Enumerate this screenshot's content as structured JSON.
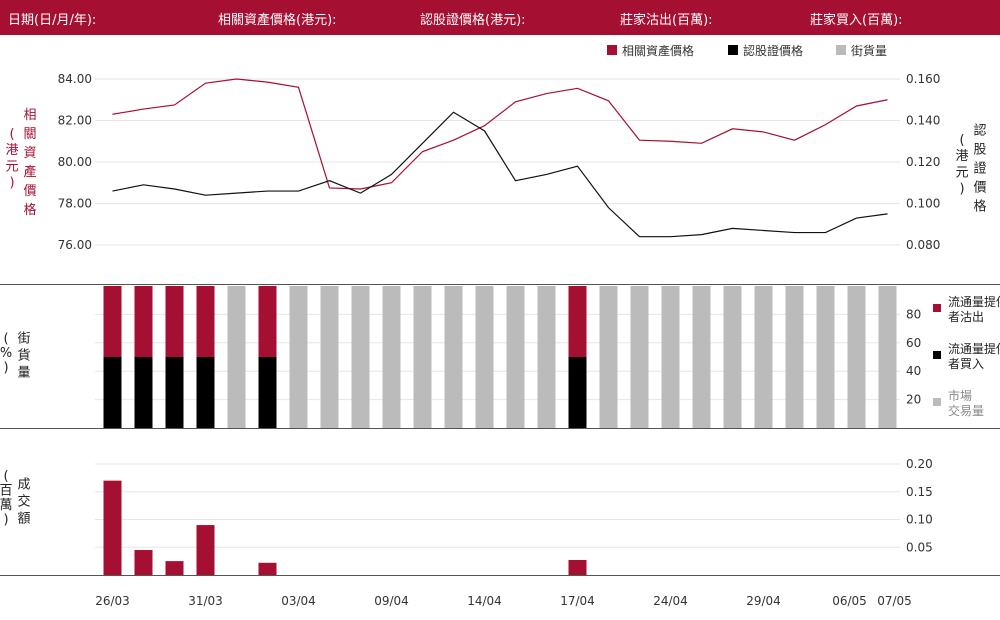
{
  "header": {
    "date_label": "日期(日/月/年):",
    "asset_price_label": "相關資產價格(港元):",
    "warrant_price_label": "認股證價格(港元):",
    "sell_label": "莊家沽出(百萬):",
    "buy_label": "莊家買入(百萬):"
  },
  "colors": {
    "accent": "#a50f32",
    "black": "#000000",
    "gray": "#bbbbbb"
  },
  "chart_data": [
    {
      "type": "line",
      "legend": [
        "相關資產價格",
        "認股證價格",
        "街貨量"
      ],
      "legend_placement": "top-right",
      "ylabel_left": "相關資產價格(港元)",
      "ylabel_right": "認股證價格(港元)",
      "yticks_left": [
        "84.00",
        "82.00",
        "80.00",
        "78.00",
        "76.00"
      ],
      "yticks_right": [
        "0.160",
        "0.140",
        "0.120",
        "0.100",
        "0.080"
      ],
      "ylim_left": [
        76,
        84
      ],
      "ylim_right": [
        0.08,
        0.16
      ],
      "series": [
        {
          "name": "相關資產價格",
          "axis": "left",
          "values": [
            82.3,
            82.55,
            82.75,
            83.8,
            84.0,
            83.85,
            83.6,
            78.75,
            78.7,
            79.0,
            80.5,
            81.05,
            81.75,
            82.9,
            83.3,
            83.55,
            82.95,
            81.05,
            81.0,
            80.9,
            81.6,
            81.45,
            81.05,
            81.8,
            82.7,
            83.0
          ]
        },
        {
          "name": "認股證價格",
          "axis": "right",
          "values": [
            0.106,
            0.109,
            0.107,
            0.104,
            0.105,
            0.106,
            0.106,
            0.111,
            0.105,
            0.114,
            0.129,
            0.144,
            0.135,
            0.111,
            0.114,
            0.118,
            0.098,
            0.084,
            0.084,
            0.085,
            0.088,
            0.087,
            0.086,
            0.086,
            0.093,
            0.095
          ]
        }
      ]
    },
    {
      "type": "bar",
      "stacked": true,
      "ylabel": "街貨量(%)",
      "yticks": [
        "80",
        "60",
        "40",
        "20"
      ],
      "ylim": [
        0,
        100
      ],
      "legend": [
        "流通量提供者沽出",
        "流通量提供者買入",
        "市場交易量"
      ],
      "series": [
        {
          "name": "流通量提供者買入",
          "values": [
            50,
            50,
            50,
            50,
            0,
            50,
            0,
            0,
            0,
            0,
            0,
            0,
            0,
            0,
            0,
            50,
            0,
            0,
            0,
            0,
            0,
            0,
            0,
            0,
            0,
            0
          ]
        },
        {
          "name": "流通量提供者沽出",
          "values": [
            50,
            50,
            50,
            50,
            0,
            50,
            0,
            0,
            0,
            0,
            0,
            0,
            0,
            0,
            0,
            50,
            0,
            0,
            0,
            0,
            0,
            0,
            0,
            0,
            0,
            0
          ]
        },
        {
          "name": "市場交易量",
          "values": [
            0,
            0,
            0,
            0,
            100,
            0,
            100,
            100,
            100,
            100,
            100,
            100,
            100,
            100,
            100,
            0,
            100,
            100,
            100,
            100,
            100,
            100,
            100,
            100,
            100,
            100
          ]
        }
      ]
    },
    {
      "type": "bar",
      "ylabel": "成交額(百萬)",
      "yticks": [
        "0.20",
        "0.15",
        "0.10",
        "0.05"
      ],
      "ylim": [
        0,
        0.2
      ],
      "values": [
        0.17,
        0.045,
        0.025,
        0.09,
        0,
        0.022,
        0,
        0,
        0,
        0,
        0,
        0,
        0,
        0,
        0,
        0.027,
        0,
        0,
        0,
        0,
        0,
        0,
        0,
        0,
        0,
        0
      ]
    }
  ],
  "x_tick_labels": [
    "26/03",
    "31/03",
    "03/04",
    "09/04",
    "14/04",
    "17/04",
    "24/04",
    "29/04",
    "06/05",
    "07/05"
  ]
}
